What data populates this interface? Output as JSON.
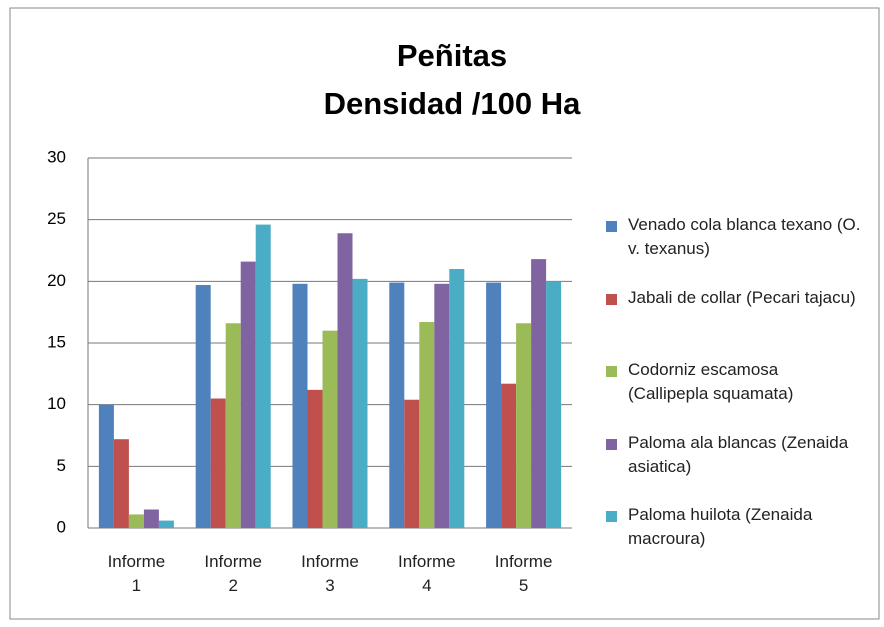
{
  "chart_data": {
    "type": "bar",
    "title": [
      "Peñitas",
      "Densidad /100 Ha"
    ],
    "categories": [
      "Informe 1",
      "Informe 2",
      "Informe 3",
      "Informe 4",
      "Informe 5"
    ],
    "series": [
      {
        "name": "Venado cola blanca texano (O. v. texanus)",
        "color": "#4f81bd",
        "values": [
          10,
          19.7,
          19.8,
          19.9,
          19.9
        ]
      },
      {
        "name": "Jabali de collar (Pecari tajacu)",
        "color": "#c0504d",
        "values": [
          7.2,
          10.5,
          11.2,
          10.4,
          11.7
        ]
      },
      {
        "name": "Codorniz escamosa (Callipepla squamata)",
        "color": "#9bbb59",
        "values": [
          1.1,
          16.6,
          16.0,
          16.7,
          16.6
        ]
      },
      {
        "name": "Paloma ala blancas (Zenaida asiatica)",
        "color": "#8064a2",
        "values": [
          1.5,
          21.6,
          23.9,
          19.8,
          21.8
        ]
      },
      {
        "name": "Paloma huilota (Zenaida macroura)",
        "color": "#4bacc6",
        "values": [
          0.6,
          24.6,
          20.2,
          21.0,
          20.0
        ]
      }
    ],
    "ylim": [
      0,
      30
    ],
    "yticks": [
      0,
      5,
      10,
      15,
      20,
      25,
      30
    ],
    "grid": true,
    "legend": "right"
  }
}
